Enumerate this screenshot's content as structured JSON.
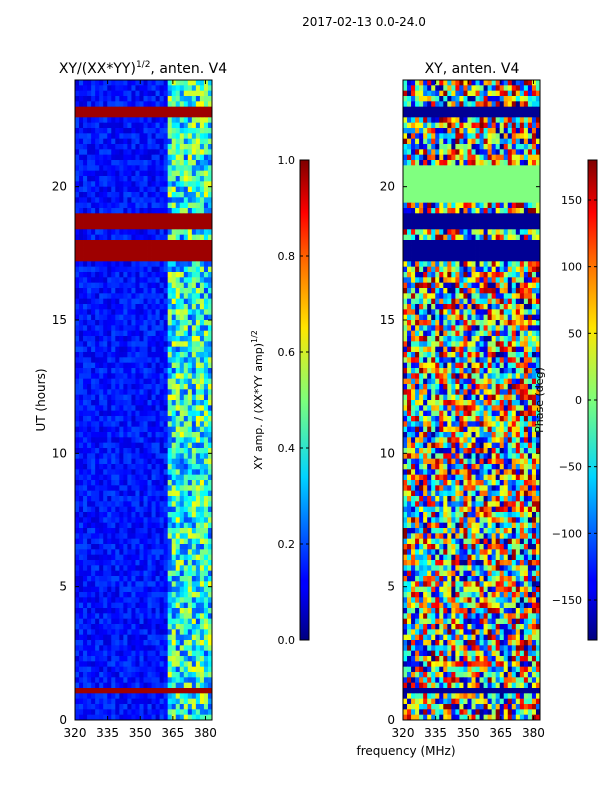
{
  "figure": {
    "suptitle": "2017-02-13 0.0-24.0",
    "shared_xlabel": "frequency (MHz)"
  },
  "chart_data": [
    {
      "type": "heatmap",
      "title": "XY/(XX*YY)",
      "title_superscript": "1/2",
      "title_suffix": ", anten. V4",
      "xlabel": "",
      "ylabel": "UT (hours)",
      "xlim": [
        320,
        383
      ],
      "ylim": [
        0,
        24
      ],
      "xticks": [
        320,
        335,
        350,
        365,
        380
      ],
      "yticks": [
        0,
        5,
        10,
        15,
        20
      ],
      "colorbar": {
        "label": "XY amp. / (XX*YY amp)",
        "label_superscript": "1/2",
        "range": [
          0.0,
          1.0
        ],
        "ticks": [
          "0.0",
          "0.2",
          "0.4",
          "0.6",
          "0.8",
          "1.0"
        ],
        "colormap": "jet"
      },
      "flagged_hours": [
        [
          22.7,
          23.0
        ],
        [
          18.5,
          18.9
        ],
        [
          17.2,
          18.0
        ],
        [
          1.1,
          1.3
        ]
      ],
      "high_band_mhz": [
        363,
        383
      ]
    },
    {
      "type": "heatmap",
      "title": "XY, anten. V4",
      "xlabel": "frequency (MHz)",
      "ylabel": "",
      "xlim": [
        320,
        383
      ],
      "ylim": [
        0,
        24
      ],
      "xticks": [
        320,
        335,
        350,
        365,
        380
      ],
      "yticks": [
        0,
        5,
        10,
        15,
        20
      ],
      "colorbar": {
        "label": "Phase (deg)",
        "range": [
          -180,
          180
        ],
        "ticks": [
          "-150",
          "-100",
          "-50",
          "0",
          "50",
          "100",
          "150"
        ],
        "colormap": "jet"
      },
      "flagged_hours": [
        [
          22.7,
          23.0
        ],
        [
          18.5,
          18.9
        ],
        [
          17.2,
          18.0
        ],
        [
          1.1,
          1.3
        ]
      ],
      "flat_hours": [
        [
          19.5,
          20.8
        ]
      ]
    }
  ]
}
